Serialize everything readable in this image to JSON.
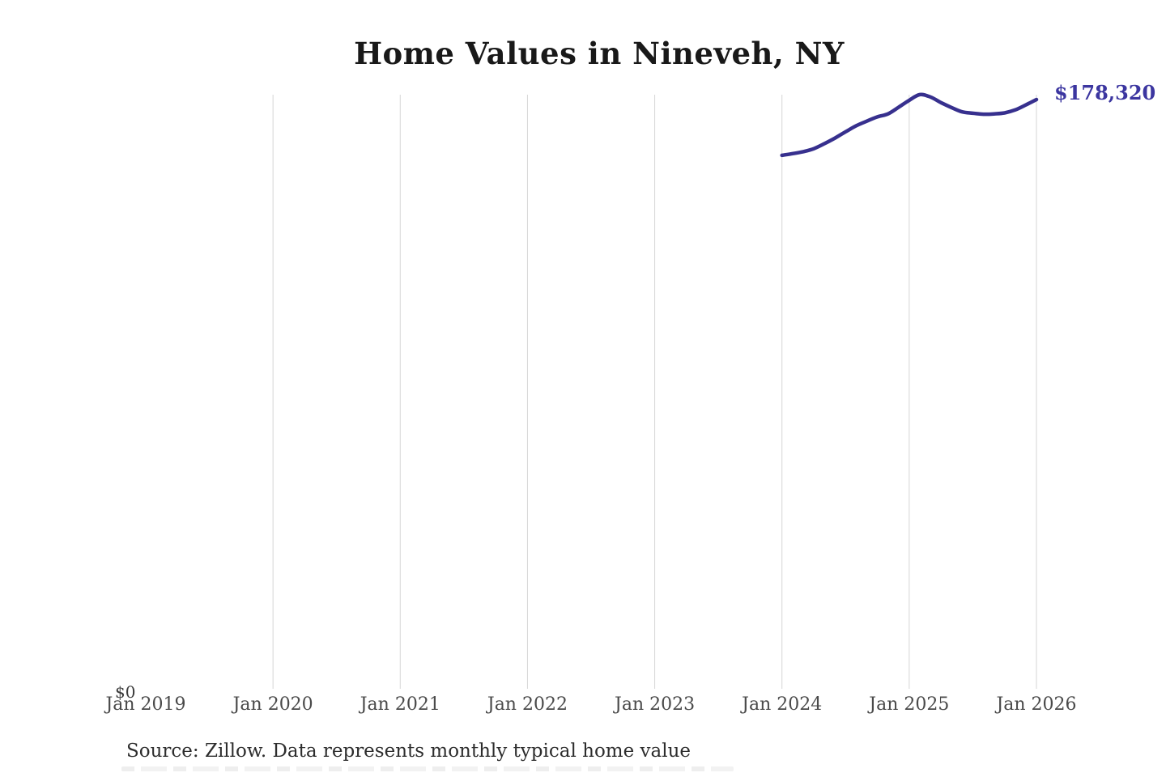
{
  "header": {
    "title": "Home Values in Nineveh, NY"
  },
  "chart_data": {
    "type": "line",
    "title": "Home Values in Nineveh, NY",
    "x": [
      "Jan 2024",
      "Feb 2024",
      "Mar 2024",
      "Apr 2024",
      "May 2024",
      "Jun 2024",
      "Jul 2024",
      "Aug 2024",
      "Sep 2024",
      "Oct 2024",
      "Nov 2024",
      "Dec 2024",
      "Jan 2025",
      "Feb 2025",
      "Mar 2025",
      "Apr 2025",
      "May 2025",
      "Jun 2025",
      "Jul 2025",
      "Aug 2025",
      "Sep 2025",
      "Oct 2025",
      "Nov 2025",
      "Dec 2025",
      "Jan 2026"
    ],
    "series": [
      {
        "name": "Monthly typical home value",
        "color": "#37308e",
        "values": [
          161500,
          162000,
          162600,
          163500,
          165000,
          166700,
          168600,
          170400,
          171800,
          173100,
          174000,
          176000,
          178100,
          179800,
          179100,
          177400,
          175900,
          174600,
          174200,
          173900,
          174000,
          174300,
          175200,
          176700,
          178320
        ]
      }
    ],
    "x_axis": {
      "tick_labels": [
        "Jan 2019",
        "Jan 2020",
        "Jan 2021",
        "Jan 2022",
        "Jan 2023",
        "Jan 2024",
        "Jan 2025",
        "Jan 2026"
      ],
      "gridlines_at": [
        "Jan 2020",
        "Jan 2021",
        "Jan 2022",
        "Jan 2023",
        "Jan 2024",
        "Jan 2025",
        "Jan 2026"
      ]
    },
    "y_axis": {
      "tick_labels": [
        "$0"
      ],
      "min": 0
    },
    "annotations": {
      "end_value_label": "$178,320"
    },
    "legend": {
      "visible": false
    },
    "grid": "vertical-only"
  },
  "footer": {
    "source_text": "Source: Zillow. Data represents monthly typical home value"
  },
  "colors": {
    "line": "#37308e",
    "end_label": "#3c36a0",
    "gridline": "#d6d6d6",
    "title_text": "#191919",
    "axis_text": "#4a4a4a",
    "source_text": "#2d2d2d",
    "background": "#ffffff"
  }
}
